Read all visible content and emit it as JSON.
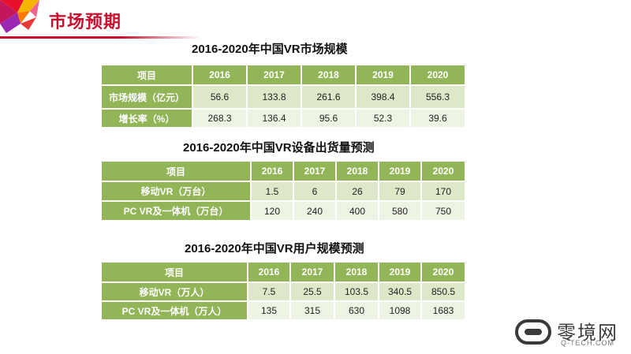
{
  "page": {
    "title": "市场预期"
  },
  "table1": {
    "title": "2016-2020年中国VR市场规模",
    "headers": [
      "项目",
      "2016",
      "2017",
      "2018",
      "2019",
      "2020"
    ],
    "rows": [
      {
        "label": "市场规模（亿元）",
        "values": [
          "56.6",
          "133.8",
          "261.6",
          "398.4",
          "556.3"
        ]
      },
      {
        "label": "增长率（%）",
        "values": [
          "268.3",
          "136.4",
          "95.6",
          "52.3",
          "39.6"
        ]
      }
    ]
  },
  "table2": {
    "title": "2016-2020年中国VR设备出货量预测",
    "headers": [
      "项目",
      "2016",
      "2017",
      "2018",
      "2019",
      "2020"
    ],
    "rows": [
      {
        "label": "移动VR（万台）",
        "values": [
          "1.5",
          "6",
          "26",
          "79",
          "170"
        ]
      },
      {
        "label": "PC VR及一体机（万台）",
        "values": [
          "120",
          "240",
          "400",
          "580",
          "750"
        ]
      }
    ]
  },
  "table3": {
    "title": "2016-2020年中国VR用户规模预测",
    "headers": [
      "项目",
      "2016",
      "2017",
      "2018",
      "2019",
      "2020"
    ],
    "rows": [
      {
        "label": "移动VR（万人）",
        "values": [
          "7.5",
          "25.5",
          "103.5",
          "340.5",
          "850.5"
        ]
      },
      {
        "label": "PC VR及一体机（万人）",
        "values": [
          "135",
          "315",
          "630",
          "1098",
          "1683"
        ]
      }
    ]
  },
  "brand": {
    "name": "零境网",
    "url": "Q-TECH.COM"
  },
  "colors": {
    "accent": "#c8102e",
    "header_green": "#92b557",
    "cell_green": "#dde8c9",
    "cell_green_light": "#eef4e4"
  }
}
